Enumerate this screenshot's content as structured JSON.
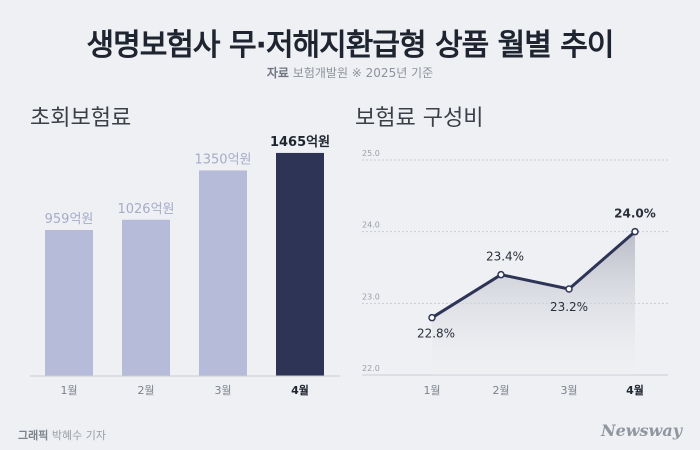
{
  "title": "생명보험사 무·저해지환급형 상품 월별 추이",
  "source": {
    "label": "자료",
    "value": "보험개발원  ※ 2025년 기준"
  },
  "credit": {
    "label": "그래픽",
    "value": "박혜수 기자"
  },
  "brand": "Newsway",
  "colors": {
    "bar_light": "#b6bbd9",
    "bar_dark": "#2e3456",
    "line": "#2e3456",
    "area_top": "#b7bac5",
    "grid": "#c9ccd3"
  },
  "chart_data": [
    {
      "type": "bar",
      "title": "초회보험료",
      "categories": [
        "1월",
        "2월",
        "3월",
        "4월"
      ],
      "values": [
        959,
        1026,
        1350,
        1465
      ],
      "value_labels": [
        "959억원",
        "1026억원",
        "1350억원",
        "1465억원"
      ],
      "highlight_index": 3,
      "ylim": [
        0,
        1550
      ]
    },
    {
      "type": "area",
      "title": "보험료 구성비",
      "categories": [
        "1월",
        "2월",
        "3월",
        "4월"
      ],
      "values": [
        22.8,
        23.4,
        23.2,
        24.0
      ],
      "value_labels": [
        "22.8%",
        "23.4%",
        "23.2%",
        "24.0%"
      ],
      "yticks": [
        "22.0",
        "23.0",
        "24.0",
        "25.0"
      ],
      "ylim": [
        22.0,
        25.0
      ],
      "grid": true,
      "highlight_index": 3
    }
  ]
}
